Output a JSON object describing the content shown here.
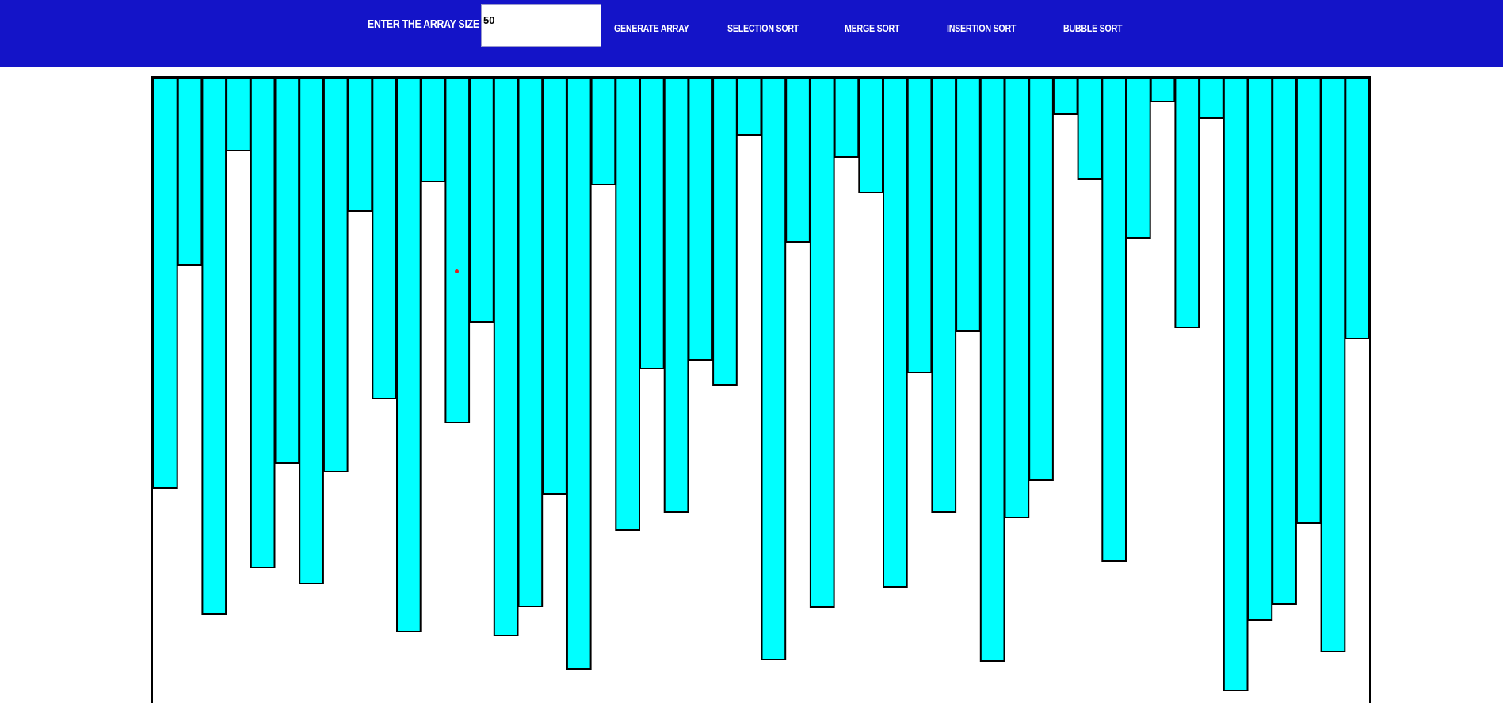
{
  "header": {
    "size_label": "ENTER THE ARRAY SIZE :",
    "size_value": "50",
    "buttons": {
      "generate": "GENERATE ARRAY",
      "selection": "SELECTION SORT",
      "merge": "MERGE SORT",
      "insertion": "INSERTION SORT",
      "bubble": "BUBBLE SORT"
    }
  },
  "colors": {
    "header_bg": "#1414c8",
    "bar_fill": "#00ffff",
    "bar_stroke": "#000000",
    "marker": "#e02020"
  },
  "array": {
    "size": 50,
    "values": [
      517,
      235,
      676,
      91,
      617,
      485,
      637,
      496,
      167,
      404,
      698,
      130,
      434,
      307,
      703,
      666,
      524,
      745,
      134,
      570,
      366,
      547,
      355,
      387,
      71,
      733,
      206,
      667,
      99,
      144,
      642,
      371,
      547,
      319,
      735,
      554,
      507,
      45,
      127,
      609,
      201,
      29,
      314,
      50,
      772,
      683,
      663,
      561,
      723,
      328
    ]
  }
}
